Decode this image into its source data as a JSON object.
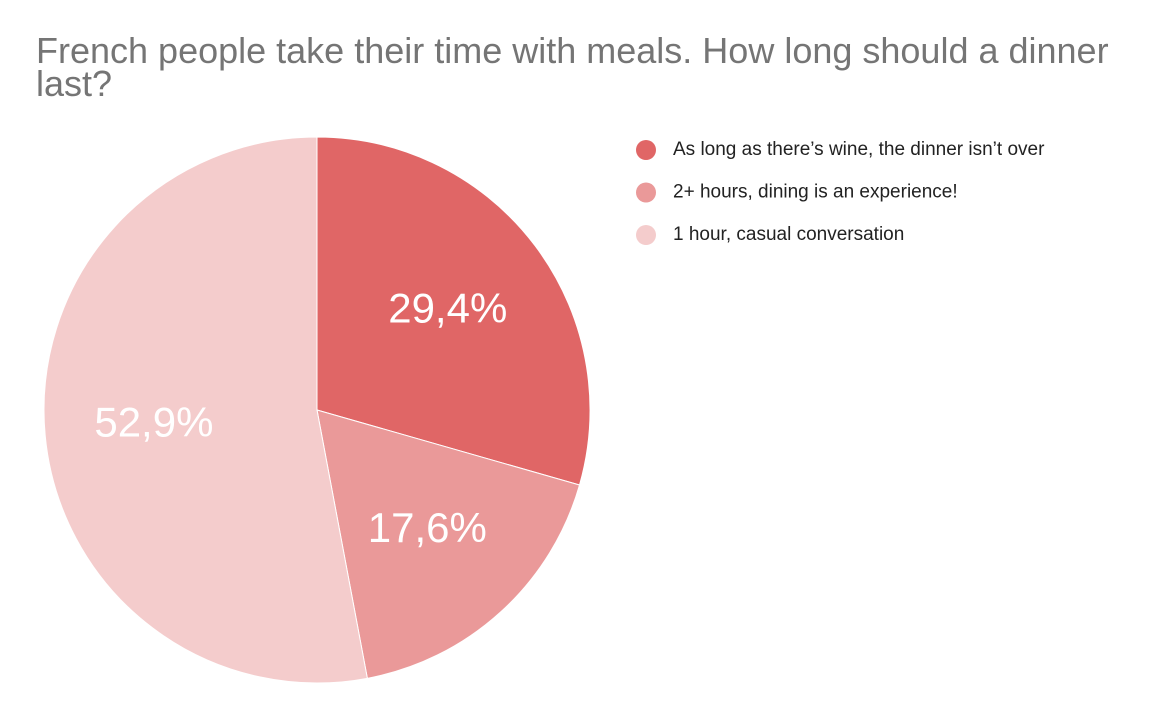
{
  "chart_data": {
    "type": "pie",
    "title": "French people take their time with meals. How long should a dinner last?",
    "categories": [
      "As long as there’s wine, the dinner isn’t over",
      "2+ hours, dining is an experience!",
      "1 hour, casual conversation"
    ],
    "values": [
      29.4,
      17.6,
      52.9
    ],
    "value_labels": [
      "29,4%",
      "17,6%",
      "52,9%"
    ],
    "colors": [
      "#e06666",
      "#ea9999",
      "#f4cccc"
    ],
    "legend": "right"
  }
}
